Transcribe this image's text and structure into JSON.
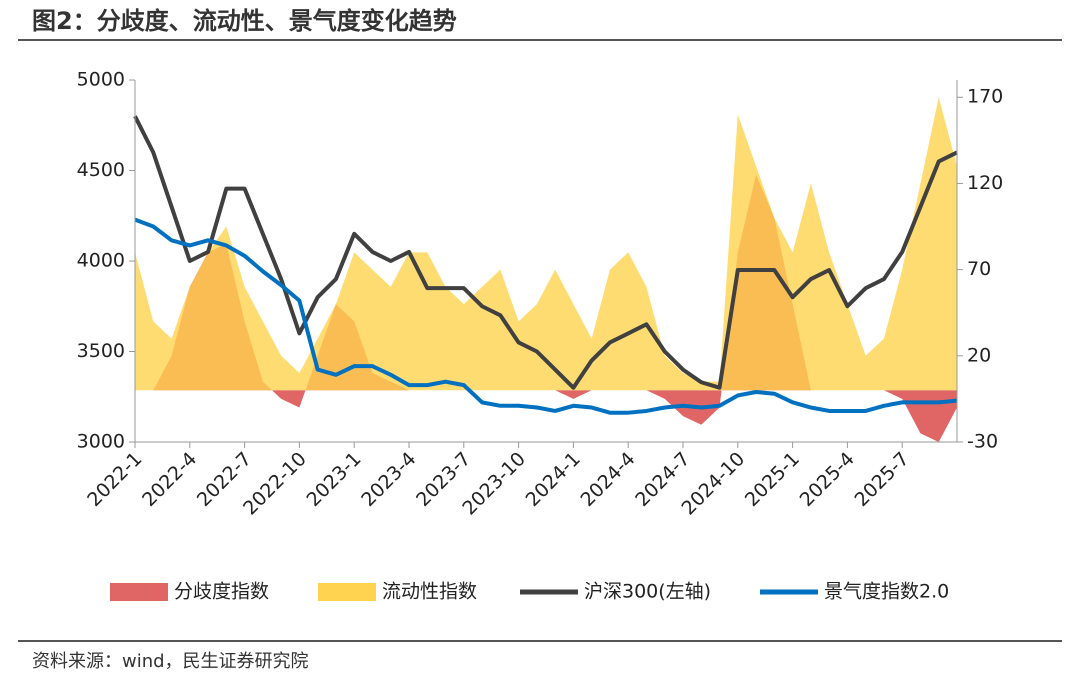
{
  "title": "图2：分歧度、流动性、景气度变化趋势",
  "source": "资料来源：wind，民生证券研究院",
  "chart_data": {
    "type": "combo",
    "categories": [
      "2022-1",
      null,
      null,
      "2022-4",
      null,
      null,
      "2022-7",
      null,
      null,
      "2022-10",
      null,
      null,
      "2023-1",
      null,
      null,
      "2023-4",
      null,
      null,
      "2023-7",
      null,
      null,
      "2023-10",
      null,
      null,
      "2024-1",
      null,
      null,
      "2024-4",
      null,
      null,
      "2024-7",
      null,
      null,
      "2024-10",
      null,
      null,
      "2025-1",
      null,
      null,
      "2025-4",
      null,
      null,
      "2025-7",
      null,
      null,
      null
    ],
    "ylim": [
      3000,
      5000
    ],
    "yticks": [
      3000,
      3500,
      4000,
      4500,
      5000
    ],
    "y2lim": [
      -30,
      180
    ],
    "y2ticks": [
      -30,
      20,
      70,
      120,
      170
    ],
    "series": [
      {
        "name": "分歧度指数",
        "kind": "area",
        "axis": "y2",
        "color": "#e06666",
        "values": [
          0,
          0,
          20,
          60,
          80,
          85,
          40,
          5,
          -5,
          -10,
          20,
          50,
          40,
          10,
          5,
          0,
          0,
          0,
          0,
          0,
          0,
          0,
          0,
          0,
          -5,
          0,
          0,
          0,
          0,
          -5,
          -15,
          -20,
          -10,
          80,
          125,
          100,
          50,
          0,
          0,
          0,
          0,
          0,
          -5,
          -25,
          -30,
          -10
        ]
      },
      {
        "name": "流动性指数",
        "kind": "area",
        "axis": "y2",
        "color": "#ffd34f",
        "values": [
          80,
          40,
          30,
          60,
          80,
          95,
          60,
          40,
          20,
          10,
          30,
          50,
          80,
          70,
          60,
          80,
          80,
          60,
          50,
          60,
          70,
          40,
          50,
          70,
          50,
          30,
          70,
          80,
          60,
          20,
          10,
          5,
          5,
          160,
          130,
          100,
          80,
          120,
          80,
          50,
          20,
          30,
          70,
          120,
          170,
          130
        ]
      },
      {
        "name": "沪深300(左轴)",
        "kind": "line",
        "axis": "y",
        "color": "#404040",
        "values": [
          4800,
          4600,
          4300,
          4000,
          4050,
          4400,
          4400,
          4150,
          3900,
          3600,
          3800,
          3900,
          4150,
          4050,
          4000,
          4050,
          3850,
          3850,
          3850,
          3750,
          3700,
          3550,
          3500,
          3400,
          3300,
          3450,
          3550,
          3600,
          3650,
          3500,
          3400,
          3330,
          3300,
          3950,
          3950,
          3950,
          3800,
          3900,
          3950,
          3750,
          3850,
          3900,
          4050,
          4300,
          4550,
          4600
        ]
      },
      {
        "name": "景气度指数2.0",
        "kind": "line",
        "axis": "y2",
        "color": "#0070c0",
        "values": [
          99,
          95,
          87,
          84,
          87,
          84,
          78,
          69,
          61,
          52,
          12,
          9,
          14,
          14,
          9,
          3,
          3,
          5,
          3,
          -7,
          -9,
          -9,
          -10,
          -12,
          -9,
          -10,
          -13,
          -13,
          -12,
          -10,
          -9,
          -10,
          -9,
          -3,
          -1,
          -2,
          -7,
          -10,
          -12,
          -12,
          -12,
          -9,
          -7,
          -7,
          -7,
          -6
        ]
      }
    ]
  }
}
